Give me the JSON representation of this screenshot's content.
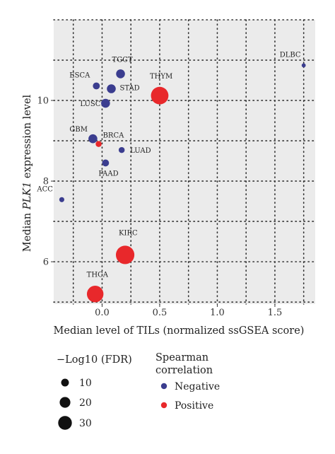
{
  "chart_data": {
    "type": "scatter",
    "xlabel": "Median level of TILs (normalized ssGSEA score)",
    "ylabel_prefix": "Median ",
    "ylabel_gene": "PLK1",
    "ylabel_suffix": " expression level",
    "xlim": [
      -0.42,
      1.85
    ],
    "ylim": [
      4.95,
      12.0
    ],
    "x_ticks": [
      0.0,
      0.5,
      1.0,
      1.5
    ],
    "x_tick_labels": [
      "0.0",
      "0.5",
      "1.0",
      "1.5"
    ],
    "y_ticks": [
      6,
      8,
      10
    ],
    "y_tick_labels": [
      "6",
      "8",
      "10"
    ],
    "grid": true,
    "colors": {
      "Negative": "#3b3d8f",
      "Positive": "#e8282b",
      "panel": "#ebebeb",
      "grid": "#333333"
    },
    "points": [
      {
        "label": "DLBC",
        "x": 1.75,
        "y": 10.87,
        "fdr": 2,
        "correlation": "Negative"
      },
      {
        "label": "TGCT",
        "x": 0.16,
        "y": 10.66,
        "fdr": 12,
        "correlation": "Negative"
      },
      {
        "label": "ESCA",
        "x": -0.05,
        "y": 10.36,
        "fdr": 8,
        "correlation": "Negative"
      },
      {
        "label": "STAD",
        "x": 0.08,
        "y": 10.29,
        "fdr": 12,
        "correlation": "Negative"
      },
      {
        "label": "THYM",
        "x": 0.5,
        "y": 10.12,
        "fdr": 30,
        "correlation": "Positive"
      },
      {
        "label": "LUSC",
        "x": 0.03,
        "y": 9.93,
        "fdr": 12,
        "correlation": "Negative"
      },
      {
        "label": "GBM",
        "x": -0.08,
        "y": 9.05,
        "fdr": 12,
        "correlation": "Negative"
      },
      {
        "label": "BRCA",
        "x": -0.03,
        "y": 8.92,
        "fdr": 6,
        "correlation": "Positive"
      },
      {
        "label": "LUAD",
        "x": 0.17,
        "y": 8.77,
        "fdr": 6,
        "correlation": "Negative"
      },
      {
        "label": "PAAD",
        "x": 0.03,
        "y": 8.45,
        "fdr": 8,
        "correlation": "Negative"
      },
      {
        "label": "ACC",
        "x": -0.35,
        "y": 7.54,
        "fdr": 4,
        "correlation": "Negative"
      },
      {
        "label": "KIRC",
        "x": 0.2,
        "y": 6.17,
        "fdr": 32,
        "correlation": "Positive"
      },
      {
        "label": "THCA",
        "x": -0.06,
        "y": 5.2,
        "fdr": 28,
        "correlation": "Positive"
      }
    ],
    "legend_size": {
      "title": "−Log10 (FDR)",
      "entries": [
        {
          "label": "10",
          "fdr": 10
        },
        {
          "label": "20",
          "fdr": 20
        },
        {
          "label": "30",
          "fdr": 30
        }
      ]
    },
    "legend_color": {
      "title_line1": "Spearman",
      "title_line2": "correlation",
      "entries": [
        {
          "label": "Negative",
          "key": "Negative"
        },
        {
          "label": "Positive",
          "key": "Positive"
        }
      ]
    }
  }
}
